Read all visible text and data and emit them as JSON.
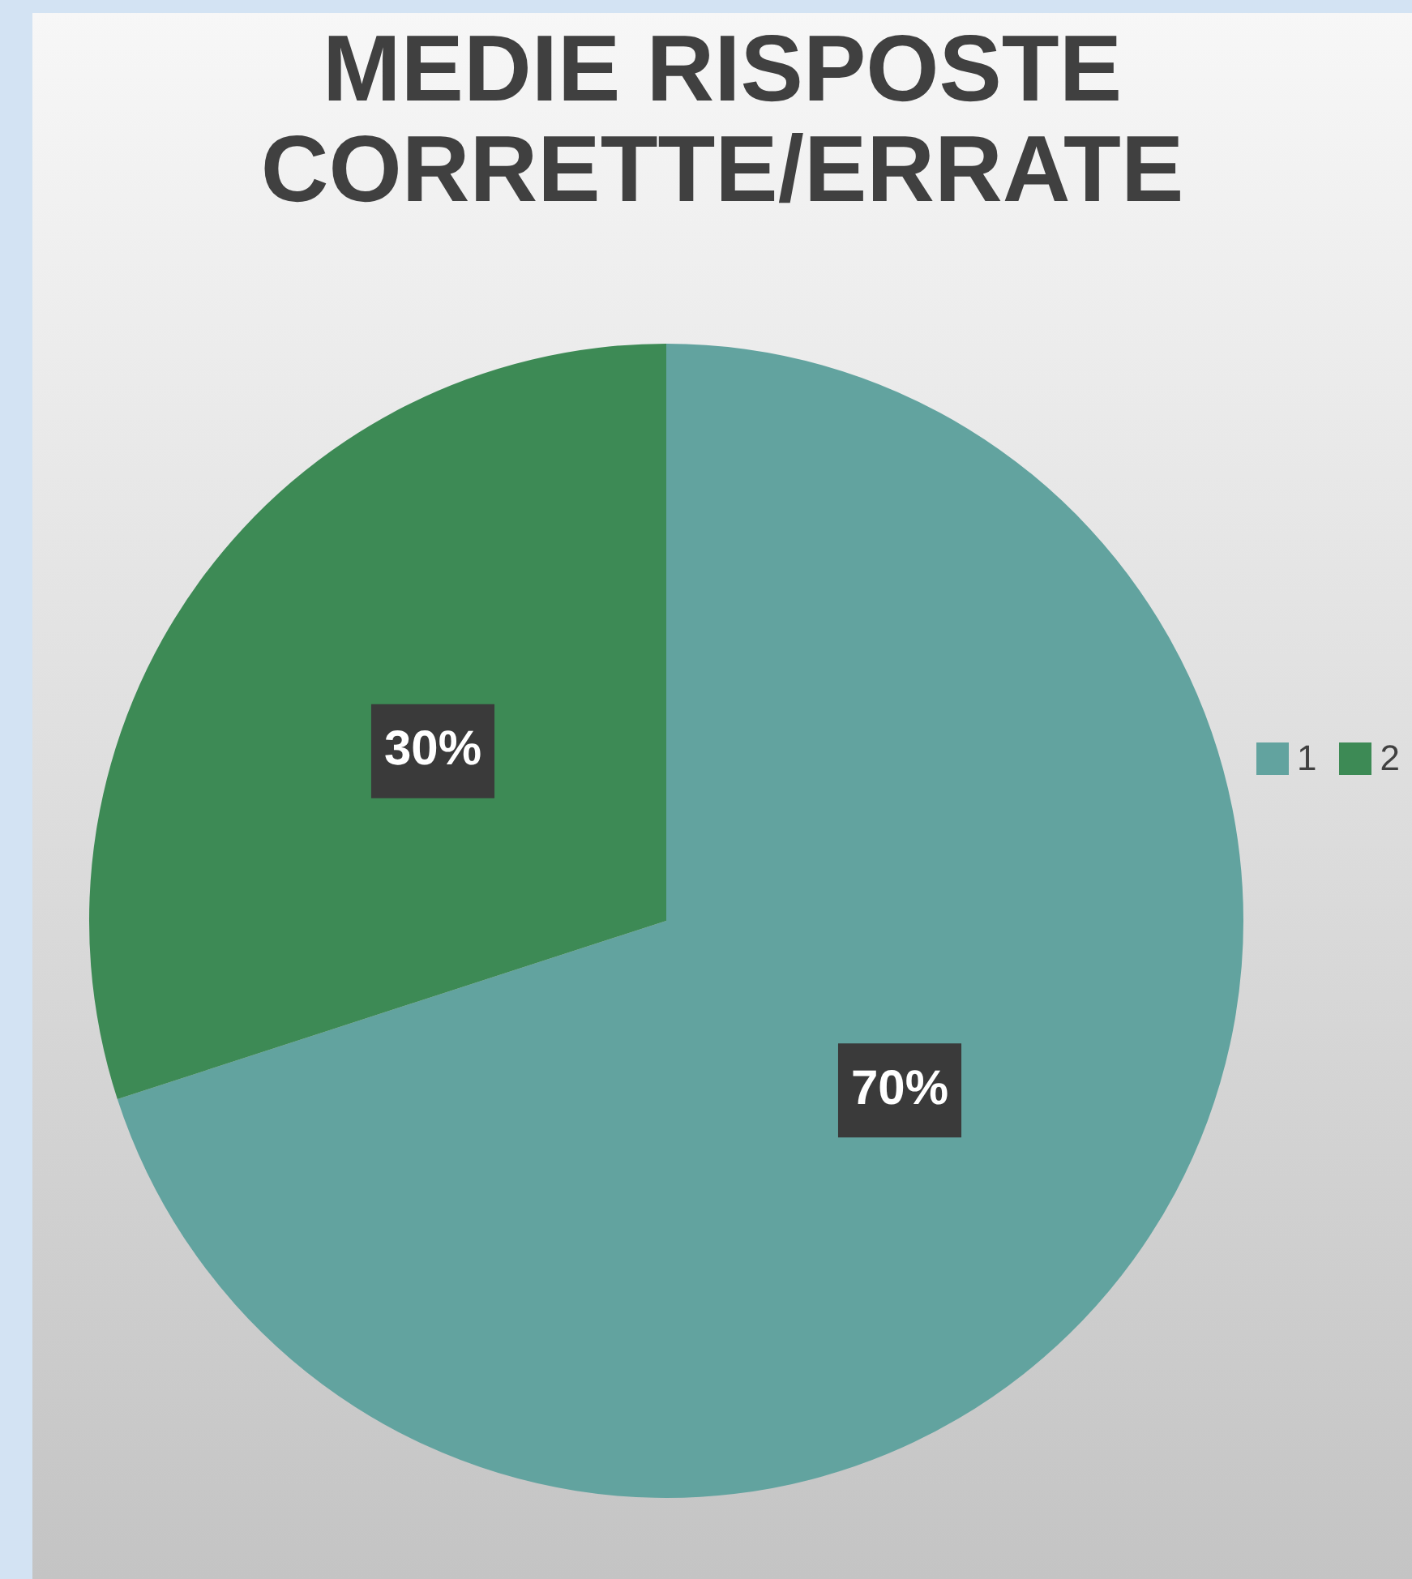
{
  "chart_data": {
    "type": "pie",
    "title": "MEDIE RISPOSTE CORRETTE/ERRATE",
    "categories": [
      "1",
      "2"
    ],
    "values": [
      70,
      30
    ],
    "colors": [
      "#62a39f",
      "#3d8a55"
    ],
    "value_labels": [
      "70%",
      "30%"
    ],
    "legend": "right"
  }
}
